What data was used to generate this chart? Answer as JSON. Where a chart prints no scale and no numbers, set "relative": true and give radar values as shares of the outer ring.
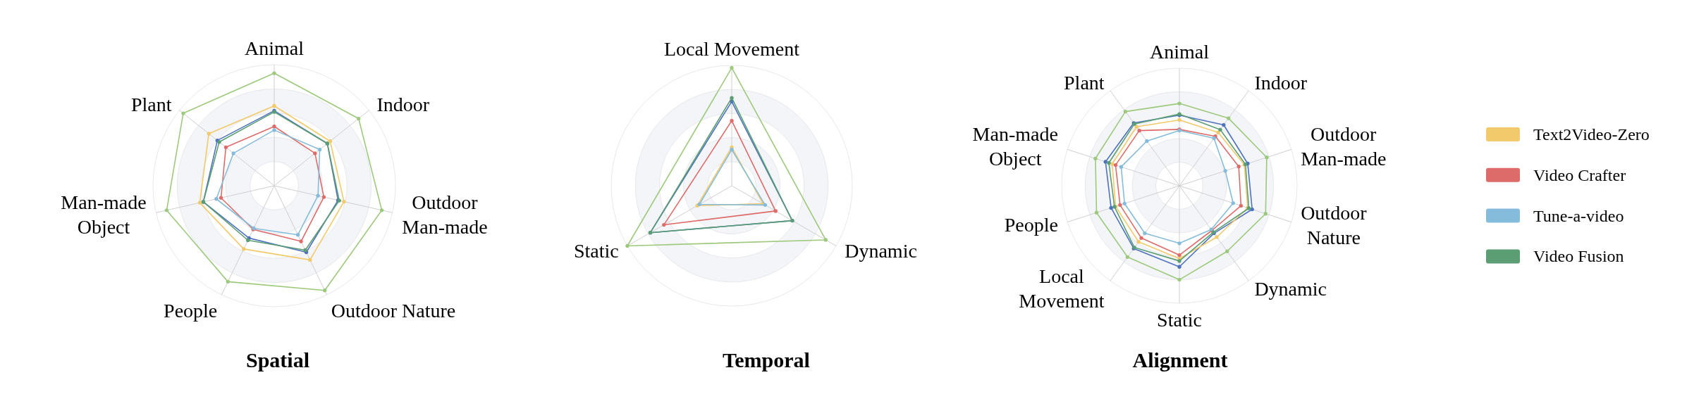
{
  "chart_data": [
    {
      "type": "radar",
      "title": "Spatial",
      "categories": [
        "Animal",
        "Indoor",
        "Outdoor Man-made",
        "Outdoor Nature",
        "People",
        "Man-made Object",
        "Plant"
      ],
      "relative": true,
      "grid": true,
      "marker": "circle",
      "line_style": "solid",
      "series": [
        {
          "color": "#4e72be",
          "values": [
            0.62,
            0.56,
            0.54,
            0.61,
            0.48,
            0.6,
            0.6
          ]
        },
        {
          "color": "#9dc97d",
          "values": [
            0.93,
            0.89,
            0.91,
            0.96,
            0.88,
            0.91,
            0.96
          ]
        },
        {
          "color": "#f2c96b",
          "values": [
            0.66,
            0.59,
            0.59,
            0.68,
            0.58,
            0.63,
            0.69
          ]
        },
        {
          "color": "#dd6b69",
          "values": [
            0.49,
            0.43,
            0.42,
            0.51,
            0.4,
            0.45,
            0.51
          ]
        },
        {
          "color": "#86bcdb",
          "values": [
            0.46,
            0.48,
            0.37,
            0.45,
            0.39,
            0.49,
            0.43
          ]
        },
        {
          "color": "#5b9e73",
          "values": [
            0.61,
            0.56,
            0.55,
            0.59,
            0.5,
            0.6,
            0.58
          ]
        }
      ]
    },
    {
      "type": "radar",
      "title": "Temporal",
      "categories": [
        "Local Movement",
        "Dynamic",
        "Static"
      ],
      "relative": true,
      "grid": true,
      "marker": "circle",
      "line_style": "solid",
      "series": [
        {
          "color": "#4e72be",
          "values": [
            0.7,
            0.58,
            0.78
          ]
        },
        {
          "color": "#9dc97d",
          "values": [
            0.98,
            0.9,
            1.0
          ]
        },
        {
          "color": "#f2c96b",
          "values": [
            0.32,
            0.3,
            0.33
          ]
        },
        {
          "color": "#dd6b69",
          "values": [
            0.54,
            0.42,
            0.65
          ]
        },
        {
          "color": "#86bcdb",
          "values": [
            0.3,
            0.32,
            0.31
          ]
        },
        {
          "color": "#5b9e73",
          "values": [
            0.73,
            0.58,
            0.78
          ]
        }
      ]
    },
    {
      "type": "radar",
      "title": "Alignment",
      "categories": [
        "Animal",
        "Indoor",
        "Outdoor Man-made",
        "Outdoor Nature",
        "Dynamic",
        "Static",
        "Local Movement",
        "People",
        "Man-made Object",
        "Plant"
      ],
      "relative": true,
      "grid": true,
      "marker": "circle",
      "line_style": "solid",
      "legend": "right",
      "series": [
        {
          "color": "#4e72be",
          "values": [
            0.6,
            0.64,
            0.61,
            0.65,
            0.5,
            0.69,
            0.66,
            0.61,
            0.66,
            0.66
          ]
        },
        {
          "color": "#9dc97d",
          "values": [
            0.7,
            0.71,
            0.78,
            0.77,
            0.69,
            0.8,
            0.75,
            0.74,
            0.75,
            0.78
          ]
        },
        {
          "name": "Text2Video-Zero",
          "color": "#f2c96b",
          "values": [
            0.56,
            0.56,
            0.58,
            0.61,
            0.54,
            0.62,
            0.59,
            0.57,
            0.6,
            0.62
          ]
        },
        {
          "name": "Video Crafter",
          "color": "#dd6b69",
          "values": [
            0.48,
            0.52,
            0.53,
            0.55,
            0.47,
            0.59,
            0.55,
            0.53,
            0.57,
            0.58
          ]
        },
        {
          "name": "Tune-a-video",
          "color": "#86bcdb",
          "values": [
            0.47,
            0.5,
            0.41,
            0.48,
            0.46,
            0.49,
            0.5,
            0.49,
            0.52,
            0.47
          ]
        },
        {
          "name": "Video Fusion",
          "color": "#5b9e73",
          "values": [
            0.61,
            0.59,
            0.59,
            0.62,
            0.49,
            0.64,
            0.65,
            0.58,
            0.63,
            0.65
          ]
        }
      ]
    }
  ]
}
